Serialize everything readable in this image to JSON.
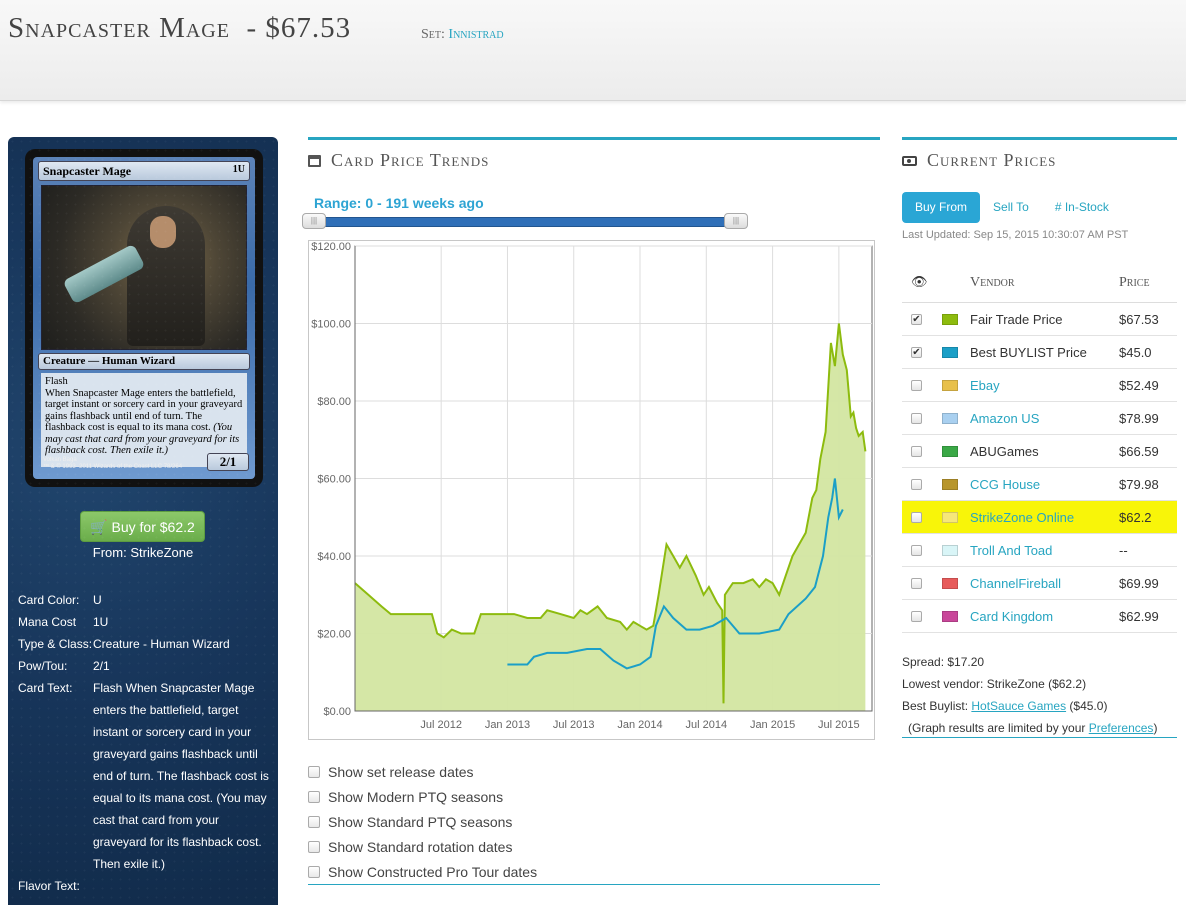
{
  "header": {
    "card_title": "Snapcaster Mage",
    "price": "$67.53",
    "set_label": "Set:",
    "set_name": "Innistrad"
  },
  "card_image": {
    "name": "Snapcaster Mage",
    "mana": "1U",
    "type_line": "Creature — Human Wizard",
    "keyword": "Flash",
    "rules": "When Snapcaster Mage enters the battlefield, target instant or sorcery card in your graveyard gains flashback until end of turn. The flashback cost is equal to its mana cost.",
    "reminder": "(You may cast that card from your graveyard for its flashback cost. Then exile it.)",
    "pt": "2/1",
    "artist": "Volkan Baga",
    "copyright": "™ & © 1993–2011 Wizards of the Coast LLC 78/264"
  },
  "buy": {
    "button_label": "Buy for $62.2",
    "from": "From: StrikeZone"
  },
  "card_info": [
    {
      "key": "Card Color:",
      "value": "U"
    },
    {
      "key": "Mana Cost",
      "value": "1U"
    },
    {
      "key": "Type & Class:",
      "value": "Creature - Human Wizard"
    },
    {
      "key": "Pow/Tou:",
      "value": "2/1"
    },
    {
      "key": "Card Text:",
      "value": "Flash When Snapcaster Mage enters the battlefield, target instant or sorcery card in your graveyard gains flashback until end of turn. The flashback cost is equal to its mana cost. (You may cast that card from your graveyard for its flashback cost. Then exile it.)"
    },
    {
      "key": "Flavor Text:",
      "value": ""
    }
  ],
  "trends": {
    "title": "Card Price Trends",
    "range_label": "Range: 0 - 191 weeks ago"
  },
  "chart_data": {
    "type": "area",
    "y_ticks": [
      "$0.00",
      "$20.00",
      "$40.00",
      "$60.00",
      "$80.00",
      "$100.00",
      "$120.00"
    ],
    "x_ticks": [
      "Jul 2012",
      "Jan 2013",
      "Jul 2013",
      "Jan 2014",
      "Jul 2014",
      "Jan 2015",
      "Jul 2015"
    ],
    "ylim": [
      0,
      120
    ],
    "colors": {
      "fair": "#8dbb0e",
      "fair_fill": "#d3e6a1",
      "buylist": "#1b9fc7"
    },
    "fair_trade": [
      [
        2011.85,
        33
      ],
      [
        2011.95,
        30
      ],
      [
        2012.05,
        27
      ],
      [
        2012.12,
        25
      ],
      [
        2012.3,
        25
      ],
      [
        2012.43,
        25
      ],
      [
        2012.47,
        20
      ],
      [
        2012.52,
        19
      ],
      [
        2012.58,
        21
      ],
      [
        2012.65,
        20
      ],
      [
        2012.75,
        20
      ],
      [
        2012.8,
        25
      ],
      [
        2012.95,
        25
      ],
      [
        2013.05,
        25
      ],
      [
        2013.15,
        24
      ],
      [
        2013.25,
        24
      ],
      [
        2013.3,
        26
      ],
      [
        2013.4,
        25
      ],
      [
        2013.5,
        24
      ],
      [
        2013.55,
        26
      ],
      [
        2013.6,
        25
      ],
      [
        2013.68,
        27
      ],
      [
        2013.75,
        24
      ],
      [
        2013.85,
        23
      ],
      [
        2013.9,
        21
      ],
      [
        2013.95,
        23
      ],
      [
        2014.0,
        22
      ],
      [
        2014.05,
        21
      ],
      [
        2014.1,
        22
      ],
      [
        2014.14,
        30
      ],
      [
        2014.2,
        43
      ],
      [
        2014.25,
        40
      ],
      [
        2014.3,
        37
      ],
      [
        2014.35,
        40
      ],
      [
        2014.42,
        35
      ],
      [
        2014.48,
        30
      ],
      [
        2014.52,
        32
      ],
      [
        2014.58,
        28
      ],
      [
        2014.62,
        26
      ],
      [
        2014.63,
        2
      ],
      [
        2014.64,
        30
      ],
      [
        2014.7,
        33
      ],
      [
        2014.78,
        33
      ],
      [
        2014.85,
        34
      ],
      [
        2014.9,
        32
      ],
      [
        2014.95,
        34
      ],
      [
        2015.0,
        33
      ],
      [
        2015.05,
        30
      ],
      [
        2015.1,
        35
      ],
      [
        2015.15,
        40
      ],
      [
        2015.2,
        43
      ],
      [
        2015.25,
        46
      ],
      [
        2015.3,
        55
      ],
      [
        2015.33,
        57
      ],
      [
        2015.36,
        65
      ],
      [
        2015.4,
        72
      ],
      [
        2015.44,
        95
      ],
      [
        2015.47,
        89
      ],
      [
        2015.5,
        100
      ],
      [
        2015.53,
        92
      ],
      [
        2015.56,
        88
      ],
      [
        2015.59,
        76
      ],
      [
        2015.61,
        77
      ],
      [
        2015.63,
        73
      ],
      [
        2015.65,
        71
      ],
      [
        2015.68,
        72
      ],
      [
        2015.7,
        67
      ]
    ],
    "buylist": [
      [
        2013.0,
        12
      ],
      [
        2013.15,
        12
      ],
      [
        2013.2,
        14
      ],
      [
        2013.3,
        15
      ],
      [
        2013.45,
        15
      ],
      [
        2013.6,
        16
      ],
      [
        2013.7,
        16
      ],
      [
        2013.8,
        13
      ],
      [
        2013.9,
        11
      ],
      [
        2014.0,
        12
      ],
      [
        2014.08,
        14
      ],
      [
        2014.12,
        22
      ],
      [
        2014.18,
        27
      ],
      [
        2014.25,
        24
      ],
      [
        2014.35,
        21
      ],
      [
        2014.45,
        21
      ],
      [
        2014.55,
        22
      ],
      [
        2014.65,
        24
      ],
      [
        2014.75,
        20
      ],
      [
        2014.9,
        20
      ],
      [
        2015.05,
        21
      ],
      [
        2015.12,
        25
      ],
      [
        2015.25,
        29
      ],
      [
        2015.32,
        32
      ],
      [
        2015.38,
        40
      ],
      [
        2015.42,
        50
      ],
      [
        2015.45,
        55
      ],
      [
        2015.47,
        60
      ],
      [
        2015.5,
        50
      ],
      [
        2015.53,
        52
      ]
    ]
  },
  "checks": [
    "Show set release dates",
    "Show Modern PTQ seasons",
    "Show Standard PTQ seasons",
    "Show Standard rotation dates",
    "Show Constructed Pro Tour dates"
  ],
  "current_prices": {
    "title": "Current Prices",
    "tabs": [
      "Buy From",
      "Sell To",
      "# In-Stock"
    ],
    "last_updated": "Last Updated: Sep 15, 2015 10:30:07 AM PST",
    "col_vendor": "Vendor",
    "col_price": "Price",
    "vendors": [
      {
        "name": "Fair Trade Price",
        "price": "$67.53",
        "color": "#8dbb0e",
        "checked": true,
        "link": false,
        "highlight": false
      },
      {
        "name": "Best BUYLIST Price",
        "price": "$45.0",
        "color": "#1b9fc7",
        "checked": true,
        "link": false,
        "highlight": false
      },
      {
        "name": "Ebay",
        "price": "$52.49",
        "color": "#e8c04a",
        "checked": false,
        "link": true,
        "highlight": false
      },
      {
        "name": "Amazon US",
        "price": "$78.99",
        "color": "#a9d0f0",
        "checked": false,
        "link": true,
        "highlight": false
      },
      {
        "name": "ABUGames",
        "price": "$66.59",
        "color": "#3aa846",
        "checked": false,
        "link": false,
        "highlight": false
      },
      {
        "name": "CCG House",
        "price": "$79.98",
        "color": "#b8962c",
        "checked": false,
        "link": true,
        "highlight": false
      },
      {
        "name": "StrikeZone Online",
        "price": "$62.2",
        "color": "#f6e77a",
        "checked": false,
        "link": true,
        "highlight": true
      },
      {
        "name": "Troll And Toad",
        "price": "--",
        "color": "#d9f5f7",
        "checked": false,
        "link": true,
        "highlight": false
      },
      {
        "name": "ChannelFireball",
        "price": "$69.99",
        "color": "#e75b5b",
        "checked": false,
        "link": true,
        "highlight": false
      },
      {
        "name": "Card Kingdom",
        "price": "$62.99",
        "color": "#c9479a",
        "checked": false,
        "link": true,
        "highlight": false
      }
    ],
    "spread": "Spread: $17.20",
    "lowest_vendor": "Lowest vendor: StrikeZone ($62.2)",
    "best_buylist_label": "Best Buylist: ",
    "best_buylist_vendor": "HotSauce Games",
    "best_buylist_price": " ($45.0)",
    "graph_note_prefix": "(Graph results are limited by your ",
    "graph_note_link": "Preferences",
    "graph_note_suffix": ")"
  }
}
